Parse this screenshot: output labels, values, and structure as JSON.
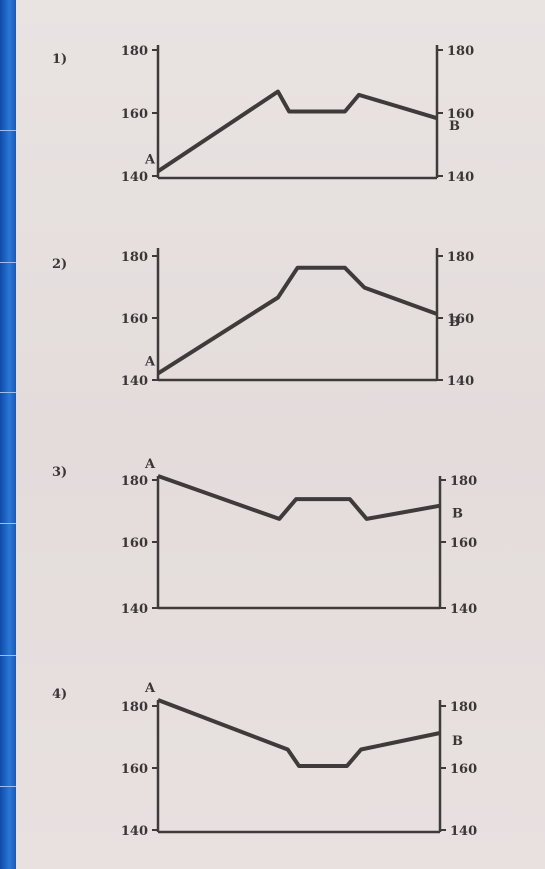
{
  "colors": {
    "paper": "#e6e0df",
    "ink": "#3f3b3b",
    "sidebar": "#1f5fb4"
  },
  "chart_data": [
    {
      "type": "line",
      "panel_label": "1)",
      "left_ticks": [
        "180",
        "160",
        "140"
      ],
      "right_ticks": [
        "180",
        "160",
        "140"
      ],
      "start_label": "A",
      "end_label": "B",
      "x": [
        0,
        0.43,
        0.47,
        0.67,
        0.72,
        1.0
      ],
      "y": [
        142,
        166,
        160,
        160,
        165,
        158
      ],
      "xlim": [
        0,
        1
      ],
      "ylim": [
        140,
        180
      ],
      "grid": false
    },
    {
      "type": "line",
      "panel_label": "2)",
      "left_ticks": [
        "180",
        "160",
        "140"
      ],
      "right_ticks": [
        "180",
        "160",
        "140"
      ],
      "start_label": "A",
      "end_label": "B",
      "x": [
        0,
        0.43,
        0.5,
        0.67,
        0.74,
        1.0
      ],
      "y": [
        142,
        165,
        174,
        174,
        168,
        160
      ],
      "xlim": [
        0,
        1
      ],
      "ylim": [
        140,
        180
      ],
      "grid": false
    },
    {
      "type": "line",
      "panel_label": "3)",
      "left_ticks": [
        "180",
        "160",
        "140"
      ],
      "right_ticks": [
        "180",
        "160",
        "140"
      ],
      "start_label": "A",
      "end_label": "B",
      "x": [
        0,
        0.43,
        0.49,
        0.68,
        0.74,
        1.0
      ],
      "y": [
        180,
        167,
        173,
        173,
        167,
        171
      ],
      "xlim": [
        0,
        1
      ],
      "ylim": [
        140,
        180
      ],
      "grid": false
    },
    {
      "type": "line",
      "panel_label": "4)",
      "left_ticks": [
        "180",
        "160",
        "140"
      ],
      "right_ticks": [
        "180",
        "160",
        "140"
      ],
      "start_label": "A",
      "end_label": "B",
      "x": [
        0,
        0.46,
        0.5,
        0.67,
        0.72,
        1.0
      ],
      "y": [
        180,
        165,
        160,
        160,
        165,
        170
      ],
      "xlim": [
        0,
        1
      ],
      "ylim": [
        140,
        180
      ],
      "grid": false
    }
  ]
}
